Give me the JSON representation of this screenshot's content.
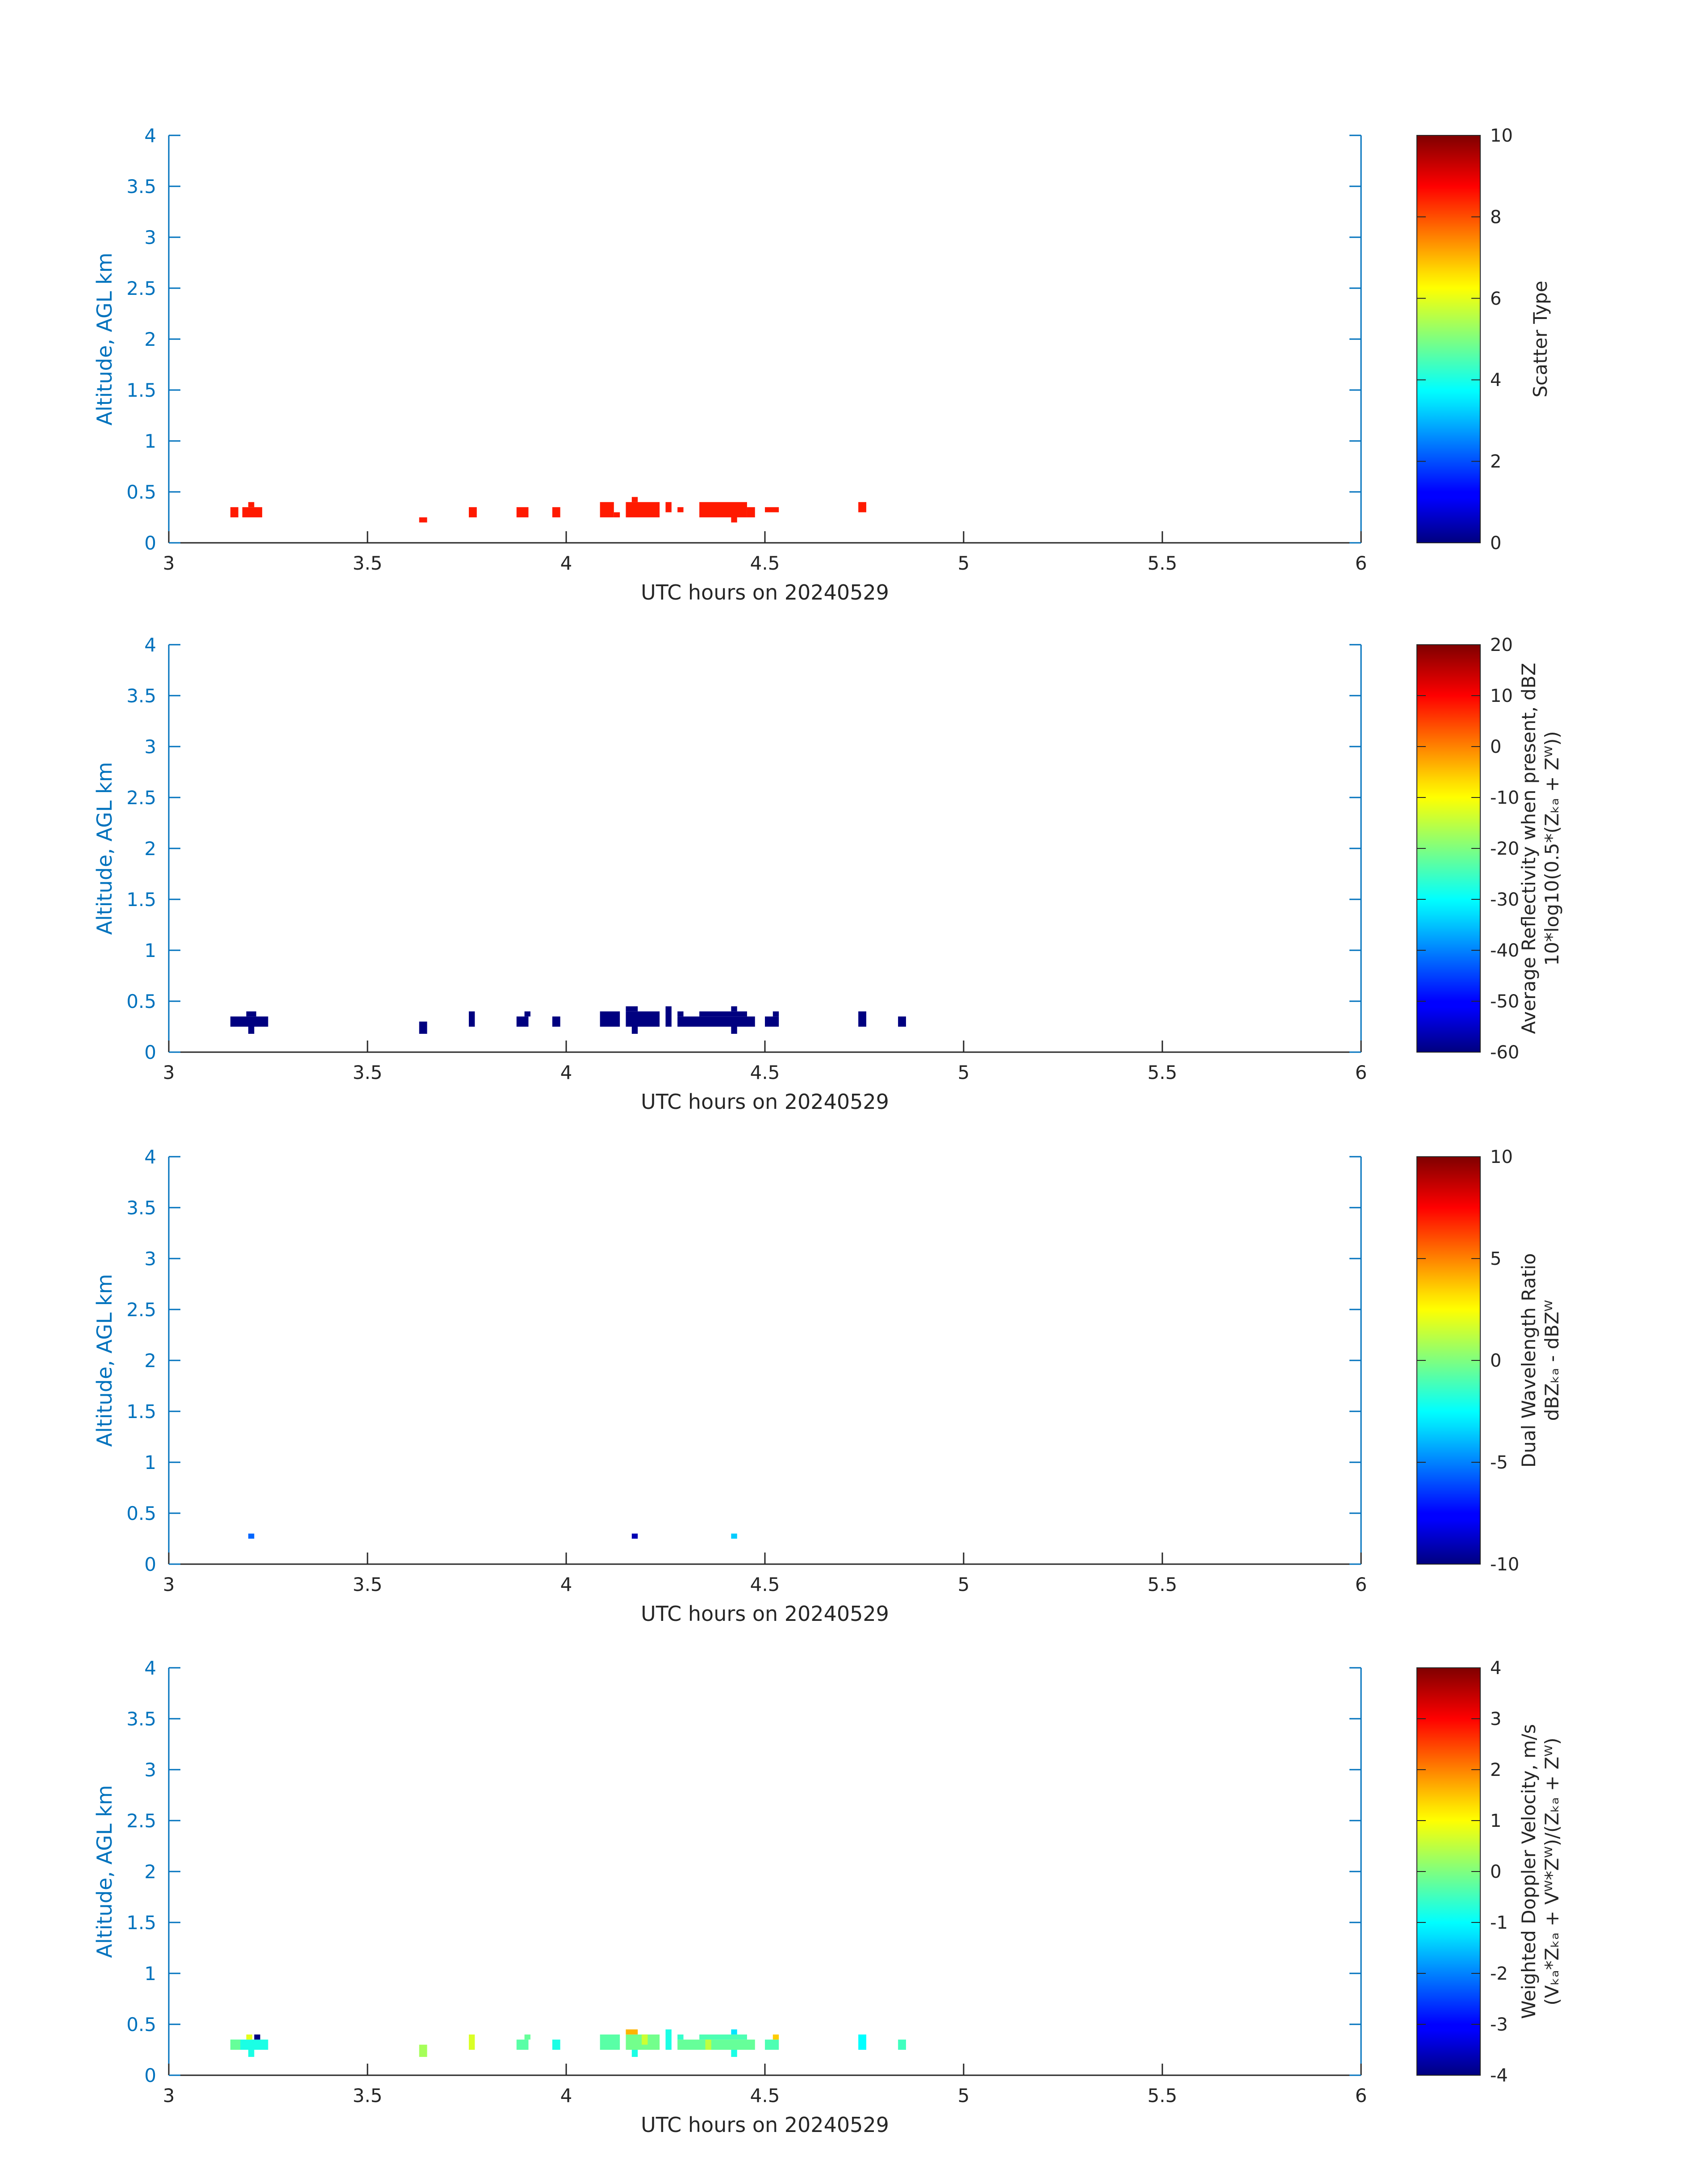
{
  "chart_data": [
    {
      "type": "heatmap",
      "xlabel": "UTC hours on 20240529",
      "ylabel": "Altitude, AGL km",
      "xlim": [
        3,
        6
      ],
      "ylim": [
        0,
        4
      ],
      "xticks": [
        "3",
        "3.5",
        "4",
        "4.5",
        "5",
        "5.5",
        "6"
      ],
      "yticks": [
        "0",
        "0.5",
        "1",
        "1.5",
        "2",
        "2.5",
        "3",
        "3.5",
        "4"
      ],
      "colorbar": {
        "colormap": "jet",
        "clim": [
          0,
          10
        ],
        "ticks": [
          "0",
          "2",
          "4",
          "6",
          "8",
          "10"
        ],
        "label_lines": [
          "Scatter Type"
        ]
      },
      "cells": [
        {
          "x": [
            3.155,
            3.175
          ],
          "y": [
            0.25,
            0.35
          ],
          "v": 8.5
        },
        {
          "x": [
            3.185,
            3.235
          ],
          "y": [
            0.25,
            0.35
          ],
          "v": 8.5
        },
        {
          "x": [
            3.2,
            3.215
          ],
          "y": [
            0.35,
            0.4
          ],
          "v": 8.5
        },
        {
          "x": [
            3.63,
            3.65
          ],
          "y": [
            0.2,
            0.25
          ],
          "v": 8.5
        },
        {
          "x": [
            3.755,
            3.775
          ],
          "y": [
            0.25,
            0.35
          ],
          "v": 8.5
        },
        {
          "x": [
            3.875,
            3.905
          ],
          "y": [
            0.25,
            0.35
          ],
          "v": 8.5
        },
        {
          "x": [
            3.965,
            3.985
          ],
          "y": [
            0.25,
            0.35
          ],
          "v": 8.5
        },
        {
          "x": [
            4.085,
            4.12
          ],
          "y": [
            0.25,
            0.4
          ],
          "v": 8.5
        },
        {
          "x": [
            4.12,
            4.135
          ],
          "y": [
            0.25,
            0.3
          ],
          "v": 8.5
        },
        {
          "x": [
            4.15,
            4.235
          ],
          "y": [
            0.25,
            0.4
          ],
          "v": 8.5
        },
        {
          "x": [
            4.165,
            4.18
          ],
          "y": [
            0.4,
            0.45
          ],
          "v": 8.5
        },
        {
          "x": [
            4.25,
            4.265
          ],
          "y": [
            0.3,
            0.4
          ],
          "v": 8.5
        },
        {
          "x": [
            4.28,
            4.295
          ],
          "y": [
            0.3,
            0.35
          ],
          "v": 8.5
        },
        {
          "x": [
            4.335,
            4.455
          ],
          "y": [
            0.25,
            0.4
          ],
          "v": 8.5
        },
        {
          "x": [
            4.415,
            4.43
          ],
          "y": [
            0.2,
            0.25
          ],
          "v": 8.5
        },
        {
          "x": [
            4.455,
            4.475
          ],
          "y": [
            0.25,
            0.35
          ],
          "v": 8.5
        },
        {
          "x": [
            4.5,
            4.535
          ],
          "y": [
            0.3,
            0.35
          ],
          "v": 8.5
        },
        {
          "x": [
            4.735,
            4.755
          ],
          "y": [
            0.3,
            0.4
          ],
          "v": 8.5
        }
      ]
    },
    {
      "type": "heatmap",
      "xlabel": "UTC hours on 20240529",
      "ylabel": "Altitude, AGL km",
      "xlim": [
        3,
        6
      ],
      "ylim": [
        0,
        4
      ],
      "xticks": [
        "3",
        "3.5",
        "4",
        "4.5",
        "5",
        "5.5",
        "6"
      ],
      "yticks": [
        "0",
        "0.5",
        "1",
        "1.5",
        "2",
        "2.5",
        "3",
        "3.5",
        "4"
      ],
      "colorbar": {
        "colormap": "jet",
        "clim": [
          -60,
          20
        ],
        "ticks": [
          "-60",
          "-50",
          "-40",
          "-30",
          "-20",
          "-10",
          "0",
          "10",
          "20"
        ],
        "label_lines": [
          "Average Reflectivity when present, dBZ",
          "10*log10(0.5*(Zₖₐ + Zᵂ))"
        ]
      },
      "cells": [
        {
          "x": [
            3.155,
            3.25
          ],
          "y": [
            0.25,
            0.35
          ],
          "v": -60
        },
        {
          "x": [
            3.195,
            3.22
          ],
          "y": [
            0.35,
            0.4
          ],
          "v": -60
        },
        {
          "x": [
            3.2,
            3.215
          ],
          "y": [
            0.18,
            0.25
          ],
          "v": -60
        },
        {
          "x": [
            3.63,
            3.65
          ],
          "y": [
            0.18,
            0.3
          ],
          "v": -60
        },
        {
          "x": [
            3.755,
            3.77
          ],
          "y": [
            0.25,
            0.4
          ],
          "v": -60
        },
        {
          "x": [
            3.875,
            3.905
          ],
          "y": [
            0.25,
            0.35
          ],
          "v": -60
        },
        {
          "x": [
            3.895,
            3.91
          ],
          "y": [
            0.35,
            0.4
          ],
          "v": -60
        },
        {
          "x": [
            3.965,
            3.985
          ],
          "y": [
            0.25,
            0.35
          ],
          "v": -60
        },
        {
          "x": [
            4.085,
            4.135
          ],
          "y": [
            0.25,
            0.4
          ],
          "v": -60
        },
        {
          "x": [
            4.15,
            4.235
          ],
          "y": [
            0.25,
            0.4
          ],
          "v": -60
        },
        {
          "x": [
            4.15,
            4.18
          ],
          "y": [
            0.4,
            0.45
          ],
          "v": -60
        },
        {
          "x": [
            4.165,
            4.18
          ],
          "y": [
            0.18,
            0.25
          ],
          "v": -60
        },
        {
          "x": [
            4.25,
            4.265
          ],
          "y": [
            0.25,
            0.45
          ],
          "v": -60
        },
        {
          "x": [
            4.28,
            4.475
          ],
          "y": [
            0.25,
            0.35
          ],
          "v": -60
        },
        {
          "x": [
            4.28,
            4.295
          ],
          "y": [
            0.35,
            0.4
          ],
          "v": -60
        },
        {
          "x": [
            4.335,
            4.455
          ],
          "y": [
            0.35,
            0.4
          ],
          "v": -60
        },
        {
          "x": [
            4.415,
            4.43
          ],
          "y": [
            0.18,
            0.25
          ],
          "v": -60
        },
        {
          "x": [
            4.415,
            4.43
          ],
          "y": [
            0.4,
            0.45
          ],
          "v": -60
        },
        {
          "x": [
            4.5,
            4.535
          ],
          "y": [
            0.25,
            0.35
          ],
          "v": -60
        },
        {
          "x": [
            4.52,
            4.535
          ],
          "y": [
            0.35,
            0.4
          ],
          "v": -60
        },
        {
          "x": [
            4.735,
            4.755
          ],
          "y": [
            0.25,
            0.4
          ],
          "v": -60
        },
        {
          "x": [
            4.835,
            4.855
          ],
          "y": [
            0.25,
            0.35
          ],
          "v": -60
        }
      ]
    },
    {
      "type": "heatmap",
      "xlabel": "UTC hours on 20240529",
      "ylabel": "Altitude, AGL km",
      "xlim": [
        3,
        6
      ],
      "ylim": [
        0,
        4
      ],
      "xticks": [
        "3",
        "3.5",
        "4",
        "4.5",
        "5",
        "5.5",
        "6"
      ],
      "yticks": [
        "0",
        "0.5",
        "1",
        "1.5",
        "2",
        "2.5",
        "3",
        "3.5",
        "4"
      ],
      "colorbar": {
        "colormap": "jet",
        "clim": [
          -10,
          10
        ],
        "ticks": [
          "-10",
          "-5",
          "0",
          "5",
          "10"
        ],
        "label_lines": [
          "Dual Wavelength Ratio",
          "dBZₖₐ - dBZᵂ"
        ]
      },
      "cells": [
        {
          "x": [
            3.2,
            3.215
          ],
          "y": [
            0.25,
            0.3
          ],
          "v": -5.5
        },
        {
          "x": [
            4.165,
            4.18
          ],
          "y": [
            0.25,
            0.3
          ],
          "v": -9
        },
        {
          "x": [
            4.415,
            4.43
          ],
          "y": [
            0.25,
            0.3
          ],
          "v": -3.5
        }
      ]
    },
    {
      "type": "heatmap",
      "xlabel": "UTC hours on 20240529",
      "ylabel": "Altitude, AGL km",
      "xlim": [
        3,
        6
      ],
      "ylim": [
        0,
        4
      ],
      "xticks": [
        "3",
        "3.5",
        "4",
        "4.5",
        "5",
        "5.5",
        "6"
      ],
      "yticks": [
        "0",
        "0.5",
        "1",
        "1.5",
        "2",
        "2.5",
        "3",
        "3.5",
        "4"
      ],
      "colorbar": {
        "colormap": "jet",
        "clim": [
          -4,
          4
        ],
        "ticks": [
          "-4",
          "-3",
          "-2",
          "-1",
          "0",
          "1",
          "2",
          "3",
          "4"
        ],
        "label_lines": [
          "Weighted Doppler Velocity, m/s",
          "(Vₖₐ*Zₖₐ + Vᵂ*Zᵂ)/(Zₖₐ + Zᵂ)"
        ]
      },
      "cells": [
        {
          "x": [
            3.155,
            3.25
          ],
          "y": [
            0.25,
            0.35
          ],
          "v": -0.8
        },
        {
          "x": [
            3.155,
            3.18
          ],
          "y": [
            0.25,
            0.35
          ],
          "v": -0.2
        },
        {
          "x": [
            3.195,
            3.21
          ],
          "y": [
            0.35,
            0.4
          ],
          "v": 0.8
        },
        {
          "x": [
            3.2,
            3.215
          ],
          "y": [
            0.18,
            0.25
          ],
          "v": -0.8
        },
        {
          "x": [
            3.215,
            3.23
          ],
          "y": [
            0.35,
            0.4
          ],
          "v": -4
        },
        {
          "x": [
            3.63,
            3.65
          ],
          "y": [
            0.18,
            0.3
          ],
          "v": 0.3
        },
        {
          "x": [
            3.755,
            3.77
          ],
          "y": [
            0.25,
            0.4
          ],
          "v": 0.7
        },
        {
          "x": [
            3.875,
            3.905
          ],
          "y": [
            0.25,
            0.35
          ],
          "v": -0.3
        },
        {
          "x": [
            3.895,
            3.91
          ],
          "y": [
            0.35,
            0.4
          ],
          "v": -0.2
        },
        {
          "x": [
            3.965,
            3.985
          ],
          "y": [
            0.25,
            0.35
          ],
          "v": -0.8
        },
        {
          "x": [
            4.085,
            4.135
          ],
          "y": [
            0.25,
            0.4
          ],
          "v": -0.3
        },
        {
          "x": [
            4.15,
            4.235
          ],
          "y": [
            0.25,
            0.4
          ],
          "v": -0.1
        },
        {
          "x": [
            4.15,
            4.18
          ],
          "y": [
            0.4,
            0.45
          ],
          "v": 1.6
        },
        {
          "x": [
            4.165,
            4.18
          ],
          "y": [
            0.18,
            0.25
          ],
          "v": -0.8
        },
        {
          "x": [
            4.19,
            4.205
          ],
          "y": [
            0.3,
            0.4
          ],
          "v": 0.6
        },
        {
          "x": [
            4.25,
            4.265
          ],
          "y": [
            0.25,
            0.45
          ],
          "v": -0.8
        },
        {
          "x": [
            4.28,
            4.475
          ],
          "y": [
            0.25,
            0.35
          ],
          "v": -0.2
        },
        {
          "x": [
            4.28,
            4.295
          ],
          "y": [
            0.35,
            0.4
          ],
          "v": -0.6
        },
        {
          "x": [
            4.335,
            4.455
          ],
          "y": [
            0.35,
            0.4
          ],
          "v": -0.4
        },
        {
          "x": [
            4.35,
            4.365
          ],
          "y": [
            0.25,
            0.35
          ],
          "v": 0.5
        },
        {
          "x": [
            4.415,
            4.43
          ],
          "y": [
            0.18,
            0.25
          ],
          "v": -0.8
        },
        {
          "x": [
            4.415,
            4.43
          ],
          "y": [
            0.4,
            0.45
          ],
          "v": -1.2
        },
        {
          "x": [
            4.5,
            4.535
          ],
          "y": [
            0.25,
            0.35
          ],
          "v": -0.4
        },
        {
          "x": [
            4.52,
            4.535
          ],
          "y": [
            0.35,
            0.4
          ],
          "v": 1.4
        },
        {
          "x": [
            4.735,
            4.755
          ],
          "y": [
            0.25,
            0.4
          ],
          "v": -1.0
        },
        {
          "x": [
            4.835,
            4.855
          ],
          "y": [
            0.25,
            0.35
          ],
          "v": -0.5
        }
      ]
    }
  ]
}
